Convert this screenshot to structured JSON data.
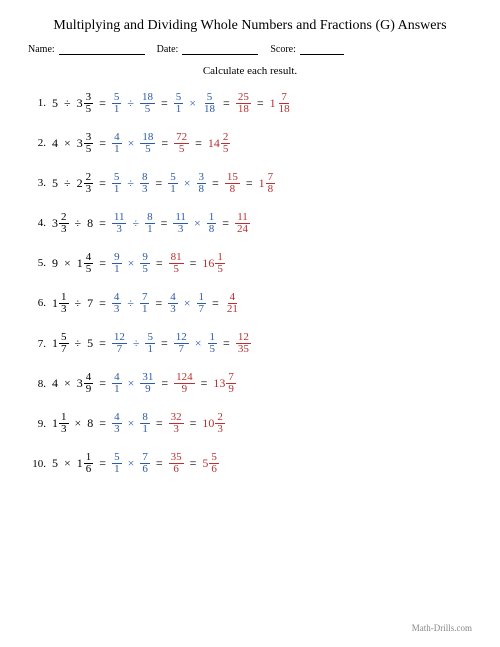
{
  "title": "Multiplying and Dividing Whole Numbers and Fractions (G) Answers",
  "header": {
    "name": "Name:",
    "date": "Date:",
    "score": "Score:"
  },
  "instruction": "Calculate each result.",
  "footer": "Math-Drills.com",
  "colors": {
    "blue": "#2a5aa8",
    "red": "#b83030",
    "text": "#000"
  },
  "layout": {
    "name_w": 86,
    "date_w": 76,
    "score_w": 44
  },
  "problems": [
    {
      "n": "1.",
      "lhs": [
        {
          "t": "int",
          "v": "5"
        },
        {
          "t": "op",
          "v": "÷"
        },
        {
          "t": "mix",
          "w": "3",
          "n": "3",
          "d": "5"
        }
      ],
      "steps": [
        [
          {
            "t": "frac",
            "n": "5",
            "d": "1",
            "c": "blue"
          },
          {
            "t": "op",
            "v": "÷",
            "c": "blue"
          },
          {
            "t": "frac",
            "n": "18",
            "d": "5",
            "c": "blue"
          }
        ],
        [
          {
            "t": "frac",
            "n": "5",
            "d": "1",
            "c": "blue"
          },
          {
            "t": "op",
            "v": "×",
            "c": "blue"
          },
          {
            "t": "frac",
            "n": "5",
            "d": "18",
            "c": "blue"
          }
        ],
        [
          {
            "t": "frac",
            "n": "25",
            "d": "18",
            "c": "red"
          }
        ],
        [
          {
            "t": "mix",
            "w": "1",
            "n": "7",
            "d": "18",
            "c": "red"
          }
        ]
      ]
    },
    {
      "n": "2.",
      "lhs": [
        {
          "t": "int",
          "v": "4"
        },
        {
          "t": "op",
          "v": "×"
        },
        {
          "t": "mix",
          "w": "3",
          "n": "3",
          "d": "5"
        }
      ],
      "steps": [
        [
          {
            "t": "frac",
            "n": "4",
            "d": "1",
            "c": "blue"
          },
          {
            "t": "op",
            "v": "×",
            "c": "blue"
          },
          {
            "t": "frac",
            "n": "18",
            "d": "5",
            "c": "blue"
          }
        ],
        [
          {
            "t": "frac",
            "n": "72",
            "d": "5",
            "c": "red"
          }
        ],
        [
          {
            "t": "mix",
            "w": "14",
            "n": "2",
            "d": "5",
            "c": "red"
          }
        ]
      ]
    },
    {
      "n": "3.",
      "lhs": [
        {
          "t": "int",
          "v": "5"
        },
        {
          "t": "op",
          "v": "÷"
        },
        {
          "t": "mix",
          "w": "2",
          "n": "2",
          "d": "3"
        }
      ],
      "steps": [
        [
          {
            "t": "frac",
            "n": "5",
            "d": "1",
            "c": "blue"
          },
          {
            "t": "op",
            "v": "÷",
            "c": "blue"
          },
          {
            "t": "frac",
            "n": "8",
            "d": "3",
            "c": "blue"
          }
        ],
        [
          {
            "t": "frac",
            "n": "5",
            "d": "1",
            "c": "blue"
          },
          {
            "t": "op",
            "v": "×",
            "c": "blue"
          },
          {
            "t": "frac",
            "n": "3",
            "d": "8",
            "c": "blue"
          }
        ],
        [
          {
            "t": "frac",
            "n": "15",
            "d": "8",
            "c": "red"
          }
        ],
        [
          {
            "t": "mix",
            "w": "1",
            "n": "7",
            "d": "8",
            "c": "red"
          }
        ]
      ]
    },
    {
      "n": "4.",
      "lhs": [
        {
          "t": "mix",
          "w": "3",
          "n": "2",
          "d": "3"
        },
        {
          "t": "op",
          "v": "÷"
        },
        {
          "t": "int",
          "v": "8"
        }
      ],
      "steps": [
        [
          {
            "t": "frac",
            "n": "11",
            "d": "3",
            "c": "blue"
          },
          {
            "t": "op",
            "v": "÷",
            "c": "blue"
          },
          {
            "t": "frac",
            "n": "8",
            "d": "1",
            "c": "blue"
          }
        ],
        [
          {
            "t": "frac",
            "n": "11",
            "d": "3",
            "c": "blue"
          },
          {
            "t": "op",
            "v": "×",
            "c": "blue"
          },
          {
            "t": "frac",
            "n": "1",
            "d": "8",
            "c": "blue"
          }
        ],
        [
          {
            "t": "frac",
            "n": "11",
            "d": "24",
            "c": "red"
          }
        ]
      ]
    },
    {
      "n": "5.",
      "lhs": [
        {
          "t": "int",
          "v": "9"
        },
        {
          "t": "op",
          "v": "×"
        },
        {
          "t": "mix",
          "w": "1",
          "n": "4",
          "d": "5"
        }
      ],
      "steps": [
        [
          {
            "t": "frac",
            "n": "9",
            "d": "1",
            "c": "blue"
          },
          {
            "t": "op",
            "v": "×",
            "c": "blue"
          },
          {
            "t": "frac",
            "n": "9",
            "d": "5",
            "c": "blue"
          }
        ],
        [
          {
            "t": "frac",
            "n": "81",
            "d": "5",
            "c": "red"
          }
        ],
        [
          {
            "t": "mix",
            "w": "16",
            "n": "1",
            "d": "5",
            "c": "red"
          }
        ]
      ]
    },
    {
      "n": "6.",
      "lhs": [
        {
          "t": "mix",
          "w": "1",
          "n": "1",
          "d": "3"
        },
        {
          "t": "op",
          "v": "÷"
        },
        {
          "t": "int",
          "v": "7"
        }
      ],
      "steps": [
        [
          {
            "t": "frac",
            "n": "4",
            "d": "3",
            "c": "blue"
          },
          {
            "t": "op",
            "v": "÷",
            "c": "blue"
          },
          {
            "t": "frac",
            "n": "7",
            "d": "1",
            "c": "blue"
          }
        ],
        [
          {
            "t": "frac",
            "n": "4",
            "d": "3",
            "c": "blue"
          },
          {
            "t": "op",
            "v": "×",
            "c": "blue"
          },
          {
            "t": "frac",
            "n": "1",
            "d": "7",
            "c": "blue"
          }
        ],
        [
          {
            "t": "frac",
            "n": "4",
            "d": "21",
            "c": "red"
          }
        ]
      ]
    },
    {
      "n": "7.",
      "lhs": [
        {
          "t": "mix",
          "w": "1",
          "n": "5",
          "d": "7"
        },
        {
          "t": "op",
          "v": "÷"
        },
        {
          "t": "int",
          "v": "5"
        }
      ],
      "steps": [
        [
          {
            "t": "frac",
            "n": "12",
            "d": "7",
            "c": "blue"
          },
          {
            "t": "op",
            "v": "÷",
            "c": "blue"
          },
          {
            "t": "frac",
            "n": "5",
            "d": "1",
            "c": "blue"
          }
        ],
        [
          {
            "t": "frac",
            "n": "12",
            "d": "7",
            "c": "blue"
          },
          {
            "t": "op",
            "v": "×",
            "c": "blue"
          },
          {
            "t": "frac",
            "n": "1",
            "d": "5",
            "c": "blue"
          }
        ],
        [
          {
            "t": "frac",
            "n": "12",
            "d": "35",
            "c": "red"
          }
        ]
      ]
    },
    {
      "n": "8.",
      "lhs": [
        {
          "t": "int",
          "v": "4"
        },
        {
          "t": "op",
          "v": "×"
        },
        {
          "t": "mix",
          "w": "3",
          "n": "4",
          "d": "9"
        }
      ],
      "steps": [
        [
          {
            "t": "frac",
            "n": "4",
            "d": "1",
            "c": "blue"
          },
          {
            "t": "op",
            "v": "×",
            "c": "blue"
          },
          {
            "t": "frac",
            "n": "31",
            "d": "9",
            "c": "blue"
          }
        ],
        [
          {
            "t": "frac",
            "n": "124",
            "d": "9",
            "c": "red"
          }
        ],
        [
          {
            "t": "mix",
            "w": "13",
            "n": "7",
            "d": "9",
            "c": "red"
          }
        ]
      ]
    },
    {
      "n": "9.",
      "lhs": [
        {
          "t": "mix",
          "w": "1",
          "n": "1",
          "d": "3"
        },
        {
          "t": "op",
          "v": "×"
        },
        {
          "t": "int",
          "v": "8"
        }
      ],
      "steps": [
        [
          {
            "t": "frac",
            "n": "4",
            "d": "3",
            "c": "blue"
          },
          {
            "t": "op",
            "v": "×",
            "c": "blue"
          },
          {
            "t": "frac",
            "n": "8",
            "d": "1",
            "c": "blue"
          }
        ],
        [
          {
            "t": "frac",
            "n": "32",
            "d": "3",
            "c": "red"
          }
        ],
        [
          {
            "t": "mix",
            "w": "10",
            "n": "2",
            "d": "3",
            "c": "red"
          }
        ]
      ]
    },
    {
      "n": "10.",
      "lhs": [
        {
          "t": "int",
          "v": "5"
        },
        {
          "t": "op",
          "v": "×"
        },
        {
          "t": "mix",
          "w": "1",
          "n": "1",
          "d": "6"
        }
      ],
      "steps": [
        [
          {
            "t": "frac",
            "n": "5",
            "d": "1",
            "c": "blue"
          },
          {
            "t": "op",
            "v": "×",
            "c": "blue"
          },
          {
            "t": "frac",
            "n": "7",
            "d": "6",
            "c": "blue"
          }
        ],
        [
          {
            "t": "frac",
            "n": "35",
            "d": "6",
            "c": "red"
          }
        ],
        [
          {
            "t": "mix",
            "w": "5",
            "n": "5",
            "d": "6",
            "c": "red"
          }
        ]
      ]
    }
  ]
}
